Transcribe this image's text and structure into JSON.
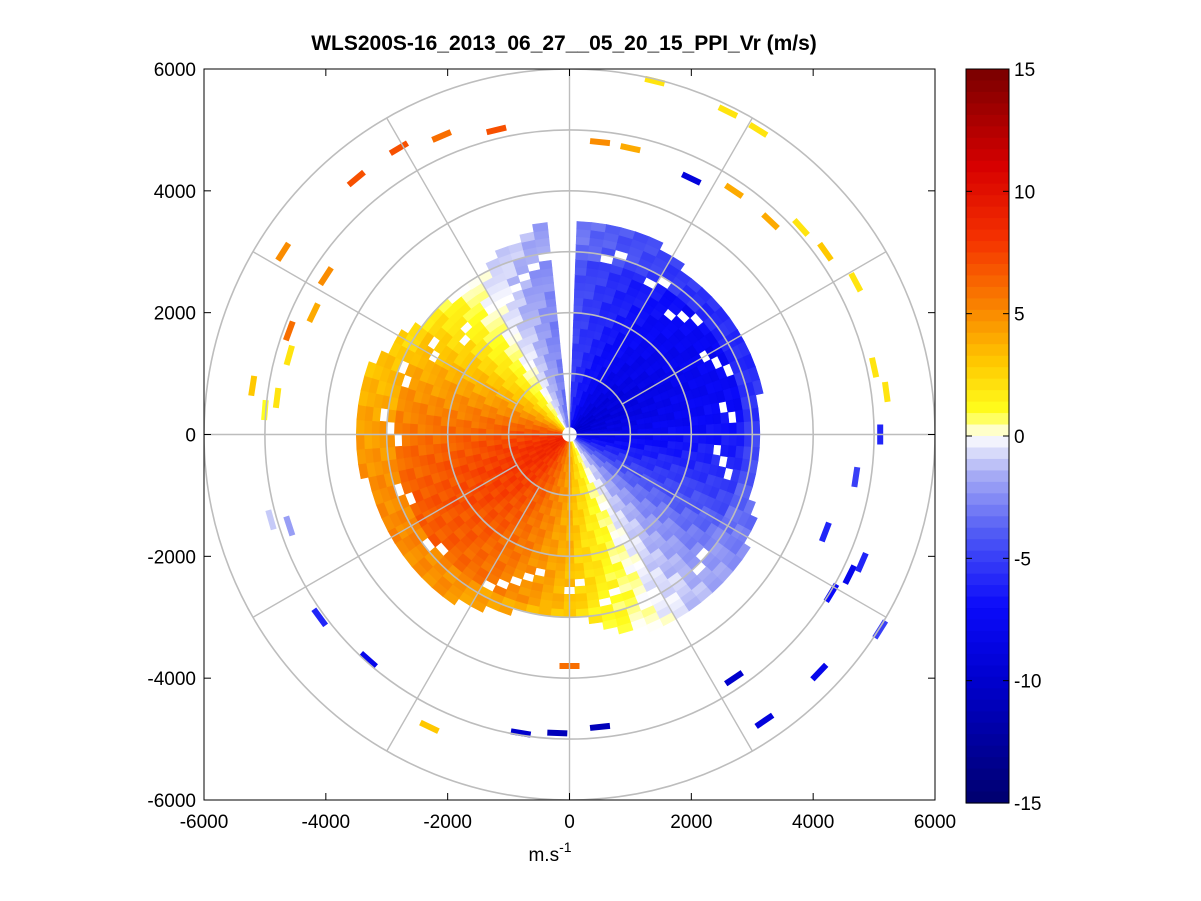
{
  "chart_data": {
    "type": "heatmap",
    "subtype": "polar-ppi",
    "title": "WLS200S-16_2013_06_27__05_20_15_PPI_Vr (m/s)",
    "xlabel": "m.s",
    "xlabel_superscript": "-1",
    "ylabel": "",
    "xlim": [
      -6000,
      6000
    ],
    "ylim": [
      -6000,
      6000
    ],
    "xticks": [
      "-6000",
      "-4000",
      "-2000",
      "0",
      "2000",
      "4000",
      "6000"
    ],
    "yticks": [
      "6000",
      "4000",
      "2000",
      "0",
      "-2000",
      "-4000",
      "-6000"
    ],
    "grid": true,
    "polar_grid_ranges": [
      1000,
      2000,
      3000,
      4000,
      5000,
      6000
    ],
    "polar_spoke_step_deg": 30,
    "colorbar": {
      "range": [
        -15,
        15
      ],
      "ticks": [
        "15",
        "10",
        "5",
        "0",
        "-5",
        "-10",
        "-15"
      ],
      "colormap": "blue-white-yellow-red"
    },
    "field": {
      "description_values": "radial velocity (m/s) sampled from the scan",
      "main_disk_max_range": 3500,
      "peak_positive": 9,
      "peak_negative": -9,
      "positive_azimuth_deg": 240,
      "negative_azimuth_deg": 60
    },
    "sparse_returns": [
      {
        "x": -3500,
        "y": 4200,
        "v": 7
      },
      {
        "x": -2800,
        "y": 4700,
        "v": 7
      },
      {
        "x": -2100,
        "y": 4900,
        "v": 6
      },
      {
        "x": -1200,
        "y": 5000,
        "v": 7
      },
      {
        "x": 500,
        "y": 4800,
        "v": 5
      },
      {
        "x": 1000,
        "y": 4700,
        "v": 4
      },
      {
        "x": 2000,
        "y": 4200,
        "v": -9
      },
      {
        "x": 2700,
        "y": 4000,
        "v": 4
      },
      {
        "x": 3300,
        "y": 3500,
        "v": 4
      },
      {
        "x": 3800,
        "y": 3400,
        "v": 2
      },
      {
        "x": 4200,
        "y": 3000,
        "v": 3
      },
      {
        "x": 4700,
        "y": 2500,
        "v": 2
      },
      {
        "x": 1400,
        "y": 5800,
        "v": 2
      },
      {
        "x": 2600,
        "y": 5300,
        "v": 2
      },
      {
        "x": 3100,
        "y": 5000,
        "v": 2
      },
      {
        "x": -4700,
        "y": 3000,
        "v": 5
      },
      {
        "x": -4600,
        "y": 1700,
        "v": 6
      },
      {
        "x": -4200,
        "y": 2000,
        "v": 4
      },
      {
        "x": -4000,
        "y": 2600,
        "v": 5
      },
      {
        "x": -4600,
        "y": 1300,
        "v": 2
      },
      {
        "x": -5200,
        "y": 800,
        "v": 3
      },
      {
        "x": -4800,
        "y": 600,
        "v": 2
      },
      {
        "x": -5000,
        "y": 400,
        "v": 1
      },
      {
        "x": -4900,
        "y": -1400,
        "v": -1
      },
      {
        "x": -4600,
        "y": -1500,
        "v": -2
      },
      {
        "x": -4100,
        "y": -3000,
        "v": -6
      },
      {
        "x": -3300,
        "y": -3700,
        "v": -8
      },
      {
        "x": -2300,
        "y": -4800,
        "v": 3
      },
      {
        "x": -800,
        "y": -4900,
        "v": -10
      },
      {
        "x": -200,
        "y": -4900,
        "v": -11
      },
      {
        "x": 500,
        "y": -4800,
        "v": -11
      },
      {
        "x": 0,
        "y": -3800,
        "v": 6
      },
      {
        "x": 2700,
        "y": -4000,
        "v": -10
      },
      {
        "x": 3200,
        "y": -4700,
        "v": -9
      },
      {
        "x": 4100,
        "y": -3900,
        "v": -8
      },
      {
        "x": 4300,
        "y": -2600,
        "v": -7
      },
      {
        "x": 4600,
        "y": -2300,
        "v": -8
      },
      {
        "x": 4800,
        "y": -2100,
        "v": -6
      },
      {
        "x": 4200,
        "y": -1600,
        "v": -6
      },
      {
        "x": 4700,
        "y": -700,
        "v": -5
      },
      {
        "x": 5100,
        "y": 0,
        "v": -6
      },
      {
        "x": 5100,
        "y": -3200,
        "v": -5
      },
      {
        "x": 5000,
        "y": 1100,
        "v": 2
      },
      {
        "x": 5200,
        "y": 700,
        "v": 2
      }
    ]
  }
}
